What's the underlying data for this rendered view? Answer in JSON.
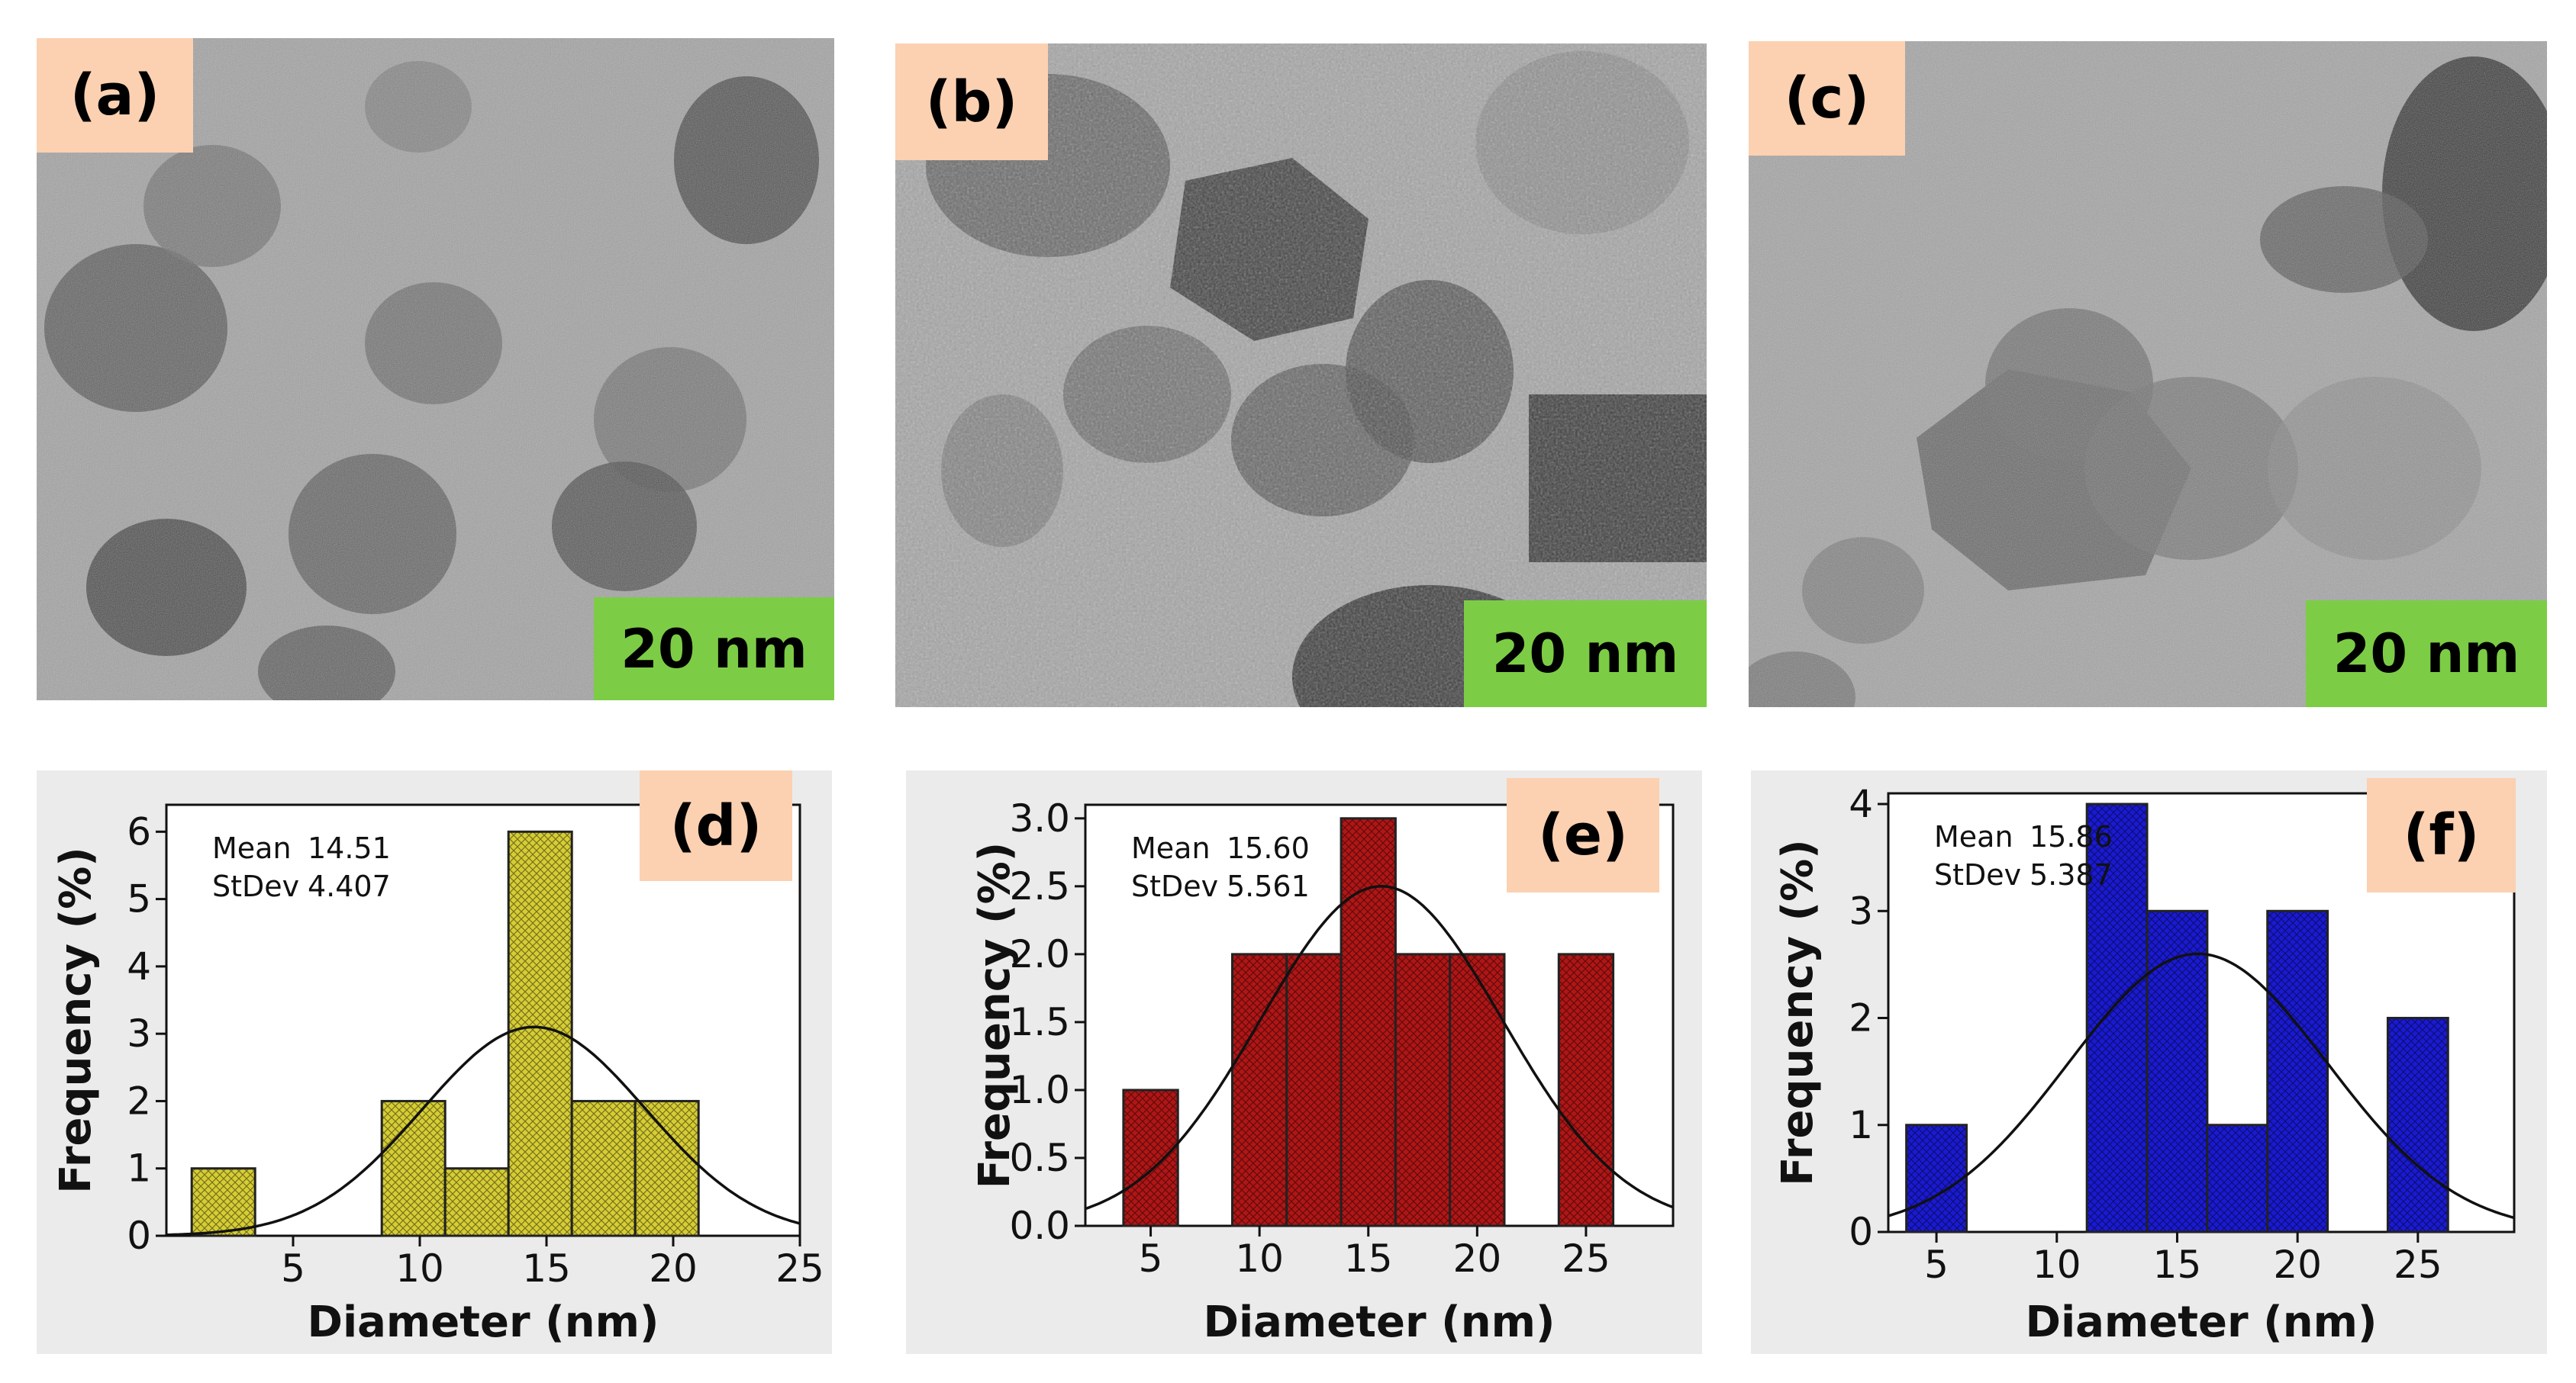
{
  "panels": [
    {
      "label": "(a)",
      "scale_bar": "20 nm"
    },
    {
      "label": "(b)",
      "scale_bar": "20 nm"
    },
    {
      "label": "(c)",
      "scale_bar": "20 nm"
    }
  ],
  "colors": {
    "d": "#d6cd35",
    "e": "#b01616",
    "f": "#1a1ad2",
    "label_bg": "#fbd1b1",
    "scale_bg": "#7ccd45",
    "chart_bg": "#ebebeb"
  },
  "chart_data": [
    {
      "type": "bar",
      "panel_label": "(d)",
      "xlabel": "Diameter (nm)",
      "ylabel": "Frequency (%)",
      "xlim": [
        0,
        25
      ],
      "ylim": [
        0,
        6.4
      ],
      "xticks": [
        5,
        10,
        15,
        20,
        25
      ],
      "yticks": [
        0,
        1,
        2,
        3,
        4,
        5,
        6
      ],
      "ytick_labels": [
        "0",
        "1",
        "2",
        "3",
        "4",
        "5",
        "6"
      ],
      "bin_edges": [
        1,
        3.5,
        6,
        8.5,
        11,
        13.5,
        16,
        18.5,
        21
      ],
      "values": [
        1,
        0,
        0,
        2,
        1,
        6,
        2,
        2
      ],
      "stats": {
        "mean_label": "Mean",
        "mean": "14.51",
        "sd_label": "StDev",
        "sd": "4.407"
      },
      "fit": {
        "type": "normal",
        "mean": 14.51,
        "sd": 4.407,
        "peak": 3.1
      }
    },
    {
      "type": "bar",
      "panel_label": "(e)",
      "xlabel": "Diameter (nm)",
      "ylabel": "Frequency (%)",
      "xlim": [
        2,
        29
      ],
      "ylim": [
        0,
        3.1
      ],
      "xticks": [
        5,
        10,
        15,
        20,
        25
      ],
      "yticks": [
        0,
        0.5,
        1,
        1.5,
        2,
        2.5,
        3
      ],
      "ytick_labels": [
        "0.0",
        "0.5",
        "1.0",
        "1.5",
        "2.0",
        "2.5",
        "3.0"
      ],
      "bin_edges": [
        3.75,
        6.25,
        8.75,
        11.25,
        13.75,
        16.25,
        18.75,
        21.25,
        23.75,
        26.25
      ],
      "values": [
        1,
        0,
        2,
        2,
        3,
        2,
        2,
        0,
        2
      ],
      "stats": {
        "mean_label": "Mean",
        "mean": "15.60",
        "sd_label": "StDev",
        "sd": "5.561"
      },
      "fit": {
        "type": "normal",
        "mean": 15.6,
        "sd": 5.561,
        "peak": 2.5
      }
    },
    {
      "type": "bar",
      "panel_label": "(f)",
      "xlabel": "Diameter (nm)",
      "ylabel": "Frequency (%)",
      "xlim": [
        3,
        29
      ],
      "ylim": [
        0,
        4.1
      ],
      "xticks": [
        5,
        10,
        15,
        20,
        25
      ],
      "yticks": [
        0,
        1,
        2,
        3,
        4
      ],
      "ytick_labels": [
        "0",
        "1",
        "2",
        "3",
        "4"
      ],
      "bin_edges": [
        3.75,
        6.25,
        8.75,
        11.25,
        13.75,
        16.25,
        18.75,
        21.25,
        23.75,
        26.25
      ],
      "values": [
        1,
        0,
        0,
        4,
        3,
        1,
        3,
        0,
        2
      ],
      "stats": {
        "mean_label": "Mean",
        "mean": "15.86",
        "sd_label": "StDev",
        "sd": "5.387"
      },
      "fit": {
        "type": "normal",
        "mean": 15.86,
        "sd": 5.387,
        "peak": 2.6
      }
    }
  ]
}
